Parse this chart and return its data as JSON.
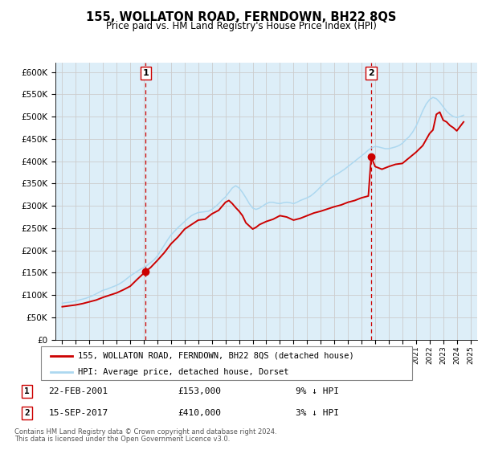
{
  "title": "155, WOLLATON ROAD, FERNDOWN, BH22 8QS",
  "subtitle": "Price paid vs. HM Land Registry's House Price Index (HPI)",
  "legend_line1": "155, WOLLATON ROAD, FERNDOWN, BH22 8QS (detached house)",
  "legend_line2": "HPI: Average price, detached house, Dorset",
  "footnote1": "Contains HM Land Registry data © Crown copyright and database right 2024.",
  "footnote2": "This data is licensed under the Open Government Licence v3.0.",
  "transaction1_label": "1",
  "transaction1_date": "22-FEB-2001",
  "transaction1_price": "£153,000",
  "transaction1_hpi": "9% ↓ HPI",
  "transaction2_label": "2",
  "transaction2_date": "15-SEP-2017",
  "transaction2_price": "£410,000",
  "transaction2_hpi": "3% ↓ HPI",
  "transaction1_x": 2001.13,
  "transaction1_y": 153000,
  "transaction2_x": 2017.71,
  "transaction2_y": 410000,
  "hpi_color": "#add8f0",
  "price_color": "#cc0000",
  "marker_color": "#cc0000",
  "vline_color": "#cc0000",
  "grid_color": "#cccccc",
  "bg_color": "#ddeef8",
  "plot_bg": "#ffffff",
  "ylim": [
    0,
    620000
  ],
  "xlim_start": 1994.5,
  "xlim_end": 2025.5,
  "hpi_data": {
    "years": [
      1995.0,
      1995.25,
      1995.5,
      1995.75,
      1996.0,
      1996.25,
      1996.5,
      1996.75,
      1997.0,
      1997.25,
      1997.5,
      1997.75,
      1998.0,
      1998.25,
      1998.5,
      1998.75,
      1999.0,
      1999.25,
      1999.5,
      1999.75,
      2000.0,
      2000.25,
      2000.5,
      2000.75,
      2001.0,
      2001.25,
      2001.5,
      2001.75,
      2002.0,
      2002.25,
      2002.5,
      2002.75,
      2003.0,
      2003.25,
      2003.5,
      2003.75,
      2004.0,
      2004.25,
      2004.5,
      2004.75,
      2005.0,
      2005.25,
      2005.5,
      2005.75,
      2006.0,
      2006.25,
      2006.5,
      2006.75,
      2007.0,
      2007.25,
      2007.5,
      2007.75,
      2008.0,
      2008.25,
      2008.5,
      2008.75,
      2009.0,
      2009.25,
      2009.5,
      2009.75,
      2010.0,
      2010.25,
      2010.5,
      2010.75,
      2011.0,
      2011.25,
      2011.5,
      2011.75,
      2012.0,
      2012.25,
      2012.5,
      2012.75,
      2013.0,
      2013.25,
      2013.5,
      2013.75,
      2014.0,
      2014.25,
      2014.5,
      2014.75,
      2015.0,
      2015.25,
      2015.5,
      2015.75,
      2016.0,
      2016.25,
      2016.5,
      2016.75,
      2017.0,
      2017.25,
      2017.5,
      2017.75,
      2018.0,
      2018.25,
      2018.5,
      2018.75,
      2019.0,
      2019.25,
      2019.5,
      2019.75,
      2020.0,
      2020.25,
      2020.5,
      2020.75,
      2021.0,
      2021.25,
      2021.5,
      2021.75,
      2022.0,
      2022.25,
      2022.5,
      2022.75,
      2023.0,
      2023.25,
      2023.5,
      2023.75,
      2024.0,
      2024.25,
      2024.5
    ],
    "values": [
      82000,
      83000,
      84000,
      85000,
      87000,
      89000,
      91000,
      93000,
      96000,
      99000,
      103000,
      107000,
      111000,
      113000,
      116000,
      119000,
      122000,
      126000,
      131000,
      137000,
      143000,
      148000,
      153000,
      158000,
      162000,
      167000,
      173000,
      179000,
      188000,
      200000,
      212000,
      224000,
      235000,
      243000,
      251000,
      258000,
      265000,
      272000,
      278000,
      282000,
      285000,
      286000,
      287000,
      288000,
      292000,
      298000,
      305000,
      313000,
      320000,
      330000,
      340000,
      345000,
      340000,
      330000,
      318000,
      305000,
      295000,
      292000,
      295000,
      300000,
      305000,
      308000,
      308000,
      306000,
      305000,
      307000,
      308000,
      307000,
      305000,
      308000,
      312000,
      315000,
      318000,
      322000,
      328000,
      335000,
      343000,
      350000,
      357000,
      363000,
      368000,
      372000,
      377000,
      382000,
      388000,
      394000,
      400000,
      406000,
      412000,
      418000,
      425000,
      430000,
      433000,
      432000,
      430000,
      428000,
      428000,
      430000,
      432000,
      435000,
      440000,
      448000,
      455000,
      465000,
      478000,
      495000,
      513000,
      528000,
      538000,
      543000,
      540000,
      532000,
      522000,
      512000,
      505000,
      500000,
      498000,
      500000,
      503000
    ]
  },
  "price_data": {
    "years": [
      1995.0,
      1995.5,
      1996.0,
      1996.5,
      1997.0,
      1997.5,
      1998.0,
      1998.5,
      1999.0,
      1999.5,
      2000.0,
      2000.5,
      2001.13,
      2001.5,
      2002.0,
      2002.5,
      2003.0,
      2003.5,
      2004.0,
      2004.5,
      2005.0,
      2005.5,
      2006.0,
      2006.5,
      2007.0,
      2007.25,
      2007.5,
      2007.75,
      2008.0,
      2008.25,
      2008.5,
      2008.75,
      2009.0,
      2009.25,
      2009.5,
      2010.0,
      2010.5,
      2011.0,
      2011.5,
      2012.0,
      2012.5,
      2013.0,
      2013.5,
      2014.0,
      2014.5,
      2015.0,
      2015.5,
      2016.0,
      2016.5,
      2017.0,
      2017.5,
      2017.71,
      2018.0,
      2018.5,
      2019.0,
      2019.5,
      2020.0,
      2021.0,
      2021.5,
      2022.0,
      2022.25,
      2022.5,
      2022.75,
      2023.0,
      2023.25,
      2023.5,
      2023.75,
      2024.0,
      2024.5
    ],
    "values": [
      74000,
      76000,
      78000,
      81000,
      85000,
      89000,
      95000,
      100000,
      105000,
      112000,
      120000,
      135000,
      153000,
      162000,
      178000,
      195000,
      215000,
      230000,
      248000,
      258000,
      268000,
      270000,
      282000,
      290000,
      308000,
      312000,
      305000,
      296000,
      288000,
      278000,
      262000,
      255000,
      248000,
      252000,
      258000,
      265000,
      270000,
      278000,
      275000,
      268000,
      272000,
      278000,
      284000,
      288000,
      293000,
      298000,
      302000,
      308000,
      312000,
      318000,
      322000,
      410000,
      388000,
      382000,
      388000,
      393000,
      395000,
      420000,
      435000,
      462000,
      470000,
      505000,
      510000,
      492000,
      488000,
      480000,
      475000,
      468000,
      488000
    ]
  }
}
